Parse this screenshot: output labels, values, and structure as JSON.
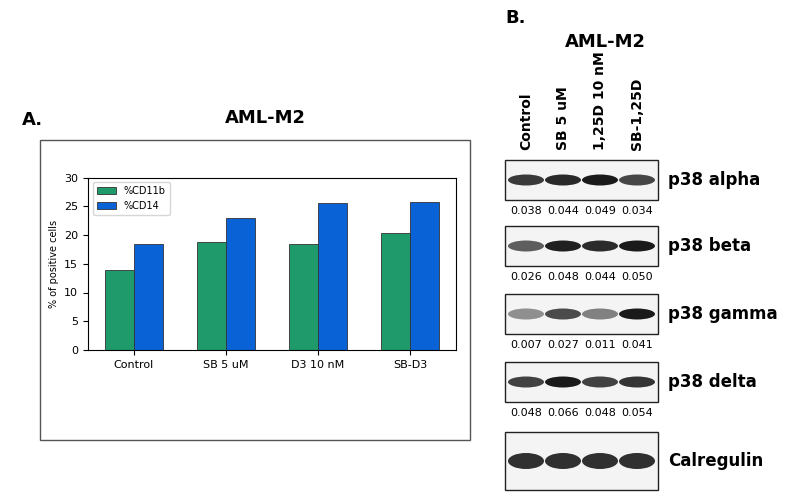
{
  "chart_data": {
    "type": "bar",
    "title": "AML-M2",
    "annotations": [
      {
        "text": "A."
      }
    ],
    "y_label": "% of positive cells",
    "categories": [
      "Control",
      "SB 5 uM",
      "D3 10 nM",
      "SB-D3"
    ],
    "series": [
      {
        "name": "%CD11b",
        "color": "#1f9a6a",
        "values": [
          14,
          18.7,
          18.5,
          20.3
        ]
      },
      {
        "name": "%CD14",
        "color": "#0a63d6",
        "values": [
          18.5,
          23,
          25.6,
          25.8
        ]
      }
    ],
    "ylim": [
      0,
      30
    ],
    "yticks": [
      0,
      5,
      10,
      15,
      20,
      25,
      30
    ],
    "grid": false,
    "legend": "upper left"
  },
  "blot": {
    "label": "B.",
    "title": "AML-M2",
    "lanes": [
      "Control",
      "SB 5 uM",
      "1,25D 10 nM",
      "SB-1,25D"
    ],
    "rows": [
      {
        "name": "p38 alpha",
        "values": [
          0.038,
          0.044,
          0.049,
          0.034
        ],
        "value_labels": [
          "0.038",
          "0.044",
          "0.049",
          "0.034"
        ]
      },
      {
        "name": "p38 beta",
        "values": [
          0.026,
          0.048,
          0.044,
          0.05
        ],
        "value_labels": [
          "0.026",
          "0.048",
          "0.044",
          "0.050"
        ]
      },
      {
        "name": "p38 gamma",
        "values": [
          0.007,
          0.027,
          0.011,
          0.041
        ],
        "value_labels": [
          "0.007",
          "0.027",
          "0.011",
          "0.041"
        ]
      },
      {
        "name": "p38 delta",
        "values": [
          0.048,
          0.066,
          0.048,
          0.054
        ],
        "value_labels": [
          "0.048",
          "0.066",
          "0.048",
          "0.054"
        ]
      },
      {
        "name": "Calregulin",
        "values": null,
        "value_labels": null
      }
    ]
  }
}
